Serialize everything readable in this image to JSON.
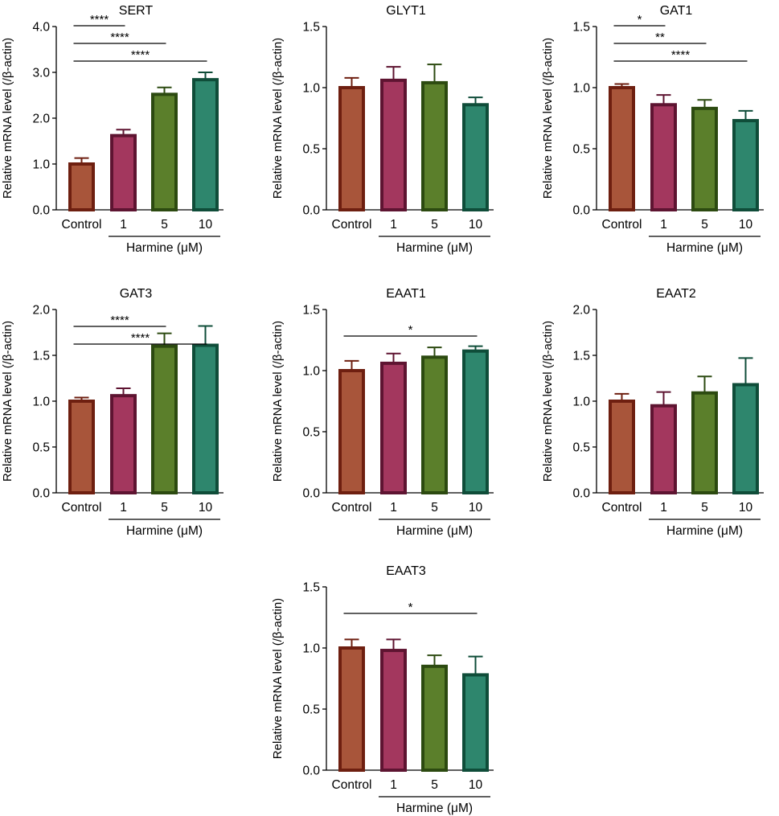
{
  "colors": {
    "fills": [
      "#a8553a",
      "#a3375e",
      "#5b7f2b",
      "#2e866d"
    ],
    "strokes": [
      "#6e1f10",
      "#5e1431",
      "#2c4a10",
      "#0f4d39"
    ],
    "axis": "#000000"
  },
  "chart_data": [
    {
      "type": "bar",
      "title": "SERT",
      "ylabel": "Relative mRNA level (/β-actin)",
      "categories": [
        "Control",
        "1",
        "5",
        "10"
      ],
      "group_label": "Harmine (μM)",
      "ylim": [
        0,
        4.0
      ],
      "yticks": [
        0,
        1,
        2,
        3,
        4
      ],
      "ytick_labels": [
        "0.0",
        "1.0",
        "2.0",
        "3.0",
        "4.0"
      ],
      "values": [
        1.0,
        1.62,
        2.52,
        2.84
      ],
      "errors": [
        0.13,
        0.13,
        0.15,
        0.16
      ],
      "significance": [
        {
          "from": 0,
          "to": 1,
          "label": "****"
        },
        {
          "from": 0,
          "to": 2,
          "label": "****"
        },
        {
          "from": 0,
          "to": 3,
          "label": "****"
        }
      ]
    },
    {
      "type": "bar",
      "title": "GLYT1",
      "ylabel": "Relative mRNA level (/β-actin)",
      "categories": [
        "Control",
        "1",
        "5",
        "10"
      ],
      "group_label": "Harmine (μM)",
      "ylim": [
        0,
        1.5
      ],
      "yticks": [
        0,
        0.5,
        1.0,
        1.5
      ],
      "ytick_labels": [
        "0.0",
        "0.5",
        "1.0",
        "1.5"
      ],
      "values": [
        1.0,
        1.06,
        1.04,
        0.86
      ],
      "errors": [
        0.08,
        0.11,
        0.15,
        0.06
      ],
      "significance": []
    },
    {
      "type": "bar",
      "title": "GAT1",
      "ylabel": "Relative mRNA level (/β-actin)",
      "categories": [
        "Control",
        "1",
        "5",
        "10"
      ],
      "group_label": "Harmine (μM)",
      "ylim": [
        0,
        1.5
      ],
      "yticks": [
        0,
        0.5,
        1.0,
        1.5
      ],
      "ytick_labels": [
        "0.0",
        "0.5",
        "1.0",
        "1.5"
      ],
      "values": [
        1.0,
        0.86,
        0.83,
        0.73
      ],
      "errors": [
        0.03,
        0.08,
        0.07,
        0.08
      ],
      "significance": [
        {
          "from": 0,
          "to": 1,
          "label": "*"
        },
        {
          "from": 0,
          "to": 2,
          "label": "**"
        },
        {
          "from": 0,
          "to": 3,
          "label": "****"
        }
      ]
    },
    {
      "type": "bar",
      "title": "GAT3",
      "ylabel": "Relative mRNA level (/β-actin)",
      "categories": [
        "Control",
        "1",
        "5",
        "10"
      ],
      "group_label": "Harmine (μM)",
      "ylim": [
        0,
        2.0
      ],
      "yticks": [
        0,
        0.5,
        1.0,
        1.5,
        2.0
      ],
      "ytick_labels": [
        "0.0",
        "0.5",
        "1.0",
        "1.5",
        "2.0"
      ],
      "values": [
        1.0,
        1.06,
        1.6,
        1.61
      ],
      "errors": [
        0.04,
        0.08,
        0.14,
        0.21
      ],
      "significance": [
        {
          "from": 0,
          "to": 2,
          "label": "****"
        },
        {
          "from": 0,
          "to": 3,
          "label": "****"
        }
      ]
    },
    {
      "type": "bar",
      "title": "EAAT1",
      "ylabel": "Relative mRNA level (/β-actin)",
      "categories": [
        "Control",
        "1",
        "5",
        "10"
      ],
      "group_label": "Harmine (μM)",
      "ylim": [
        0,
        1.5
      ],
      "yticks": [
        0,
        0.5,
        1.0,
        1.5
      ],
      "ytick_labels": [
        "0.0",
        "0.5",
        "1.0",
        "1.5"
      ],
      "values": [
        1.0,
        1.06,
        1.11,
        1.16
      ],
      "errors": [
        0.08,
        0.08,
        0.08,
        0.04
      ],
      "significance": [
        {
          "from": 0,
          "to": 3,
          "label": "*"
        }
      ]
    },
    {
      "type": "bar",
      "title": "EAAT2",
      "ylabel": "Relative mRNA level (/β-actin)",
      "categories": [
        "Control",
        "1",
        "5",
        "10"
      ],
      "group_label": "Harmine (μM)",
      "ylim": [
        0,
        2.0
      ],
      "yticks": [
        0,
        0.5,
        1.0,
        1.5,
        2.0
      ],
      "ytick_labels": [
        "0.0",
        "0.5",
        "1.0",
        "1.5",
        "2.0"
      ],
      "values": [
        1.0,
        0.95,
        1.09,
        1.18
      ],
      "errors": [
        0.08,
        0.15,
        0.18,
        0.29
      ],
      "significance": []
    },
    {
      "type": "bar",
      "title": "EAAT3",
      "ylabel": "Relative mRNA level (/β-actin)",
      "categories": [
        "Control",
        "1",
        "5",
        "10"
      ],
      "group_label": "Harmine (μM)",
      "ylim": [
        0,
        1.5
      ],
      "yticks": [
        0,
        0.5,
        1.0,
        1.5
      ],
      "ytick_labels": [
        "0.0",
        "0.5",
        "1.0",
        "1.5"
      ],
      "values": [
        1.0,
        0.98,
        0.85,
        0.78
      ],
      "errors": [
        0.07,
        0.09,
        0.09,
        0.15
      ],
      "significance": [
        {
          "from": 0,
          "to": 3,
          "label": "*"
        }
      ]
    }
  ]
}
